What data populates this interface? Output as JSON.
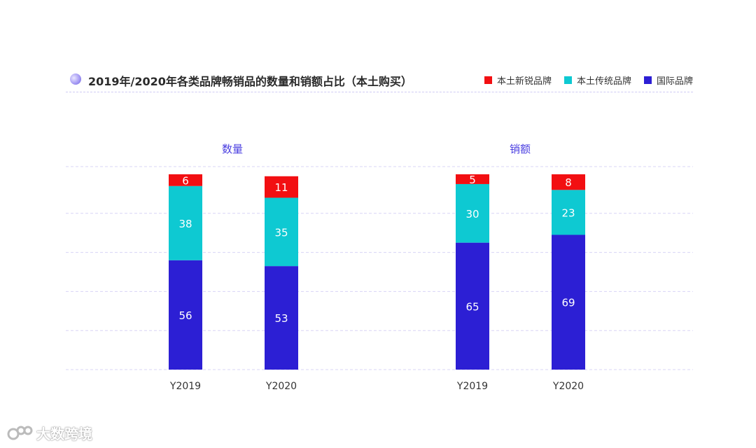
{
  "title": "2019年/2020年各类品牌畅销品的数量和销额占比（本土购买）",
  "legend": [
    {
      "name": "本土新锐品牌",
      "color": "#f20f12"
    },
    {
      "name": "本土传统品牌",
      "color": "#0ec9d2"
    },
    {
      "name": "国际品牌",
      "color": "#2c1fd4"
    }
  ],
  "chart_data": [
    {
      "type": "bar",
      "stacked": true,
      "title": "数量",
      "categories": [
        "Y2019",
        "Y2020"
      ],
      "series": [
        {
          "name": "国际品牌",
          "values": [
            56,
            53
          ]
        },
        {
          "name": "本土传统品牌",
          "values": [
            38,
            35
          ]
        },
        {
          "name": "本土新锐品牌",
          "values": [
            6,
            11
          ]
        }
      ],
      "ylim": [
        0,
        100
      ],
      "grid": true
    },
    {
      "type": "bar",
      "stacked": true,
      "title": "销额",
      "categories": [
        "Y2019",
        "Y2020"
      ],
      "series": [
        {
          "name": "国际品牌",
          "values": [
            65,
            69
          ]
        },
        {
          "name": "本土传统品牌",
          "values": [
            30,
            23
          ]
        },
        {
          "name": "本土新锐品牌",
          "values": [
            5,
            8
          ]
        }
      ],
      "ylim": [
        0,
        100
      ],
      "grid": true
    }
  ],
  "watermark": {
    "text": "大数跨境",
    "icon": "logo-icon"
  }
}
